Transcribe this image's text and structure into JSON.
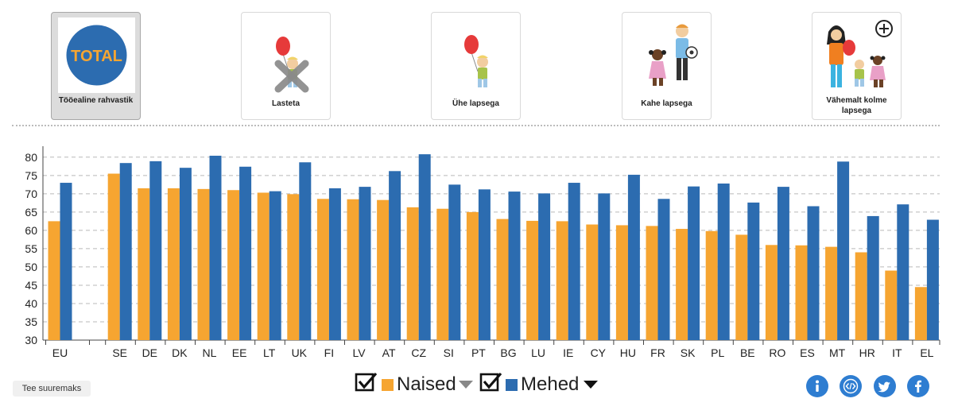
{
  "tabs": [
    {
      "id": "total",
      "label": "Tööealine rahvastik",
      "active": true,
      "icon": "total-badge-icon",
      "badge_text": "TOTAL"
    },
    {
      "id": "none",
      "label": "Lasteta",
      "active": false,
      "icon": "no-children-icon"
    },
    {
      "id": "one",
      "label": "Ühe lapsega",
      "active": false,
      "icon": "one-child-icon"
    },
    {
      "id": "two",
      "label": "Kahe lapsega",
      "active": false,
      "icon": "two-children-icon"
    },
    {
      "id": "three",
      "label": "Vähemalt kolme lapsega",
      "active": false,
      "icon": "three-plus-children-icon"
    }
  ],
  "chart_data": {
    "type": "bar",
    "categories": [
      "EU",
      "SE",
      "DE",
      "DK",
      "NL",
      "EE",
      "LT",
      "UK",
      "FI",
      "LV",
      "AT",
      "CZ",
      "SI",
      "PT",
      "BG",
      "LU",
      "IE",
      "CY",
      "HU",
      "FR",
      "SK",
      "PL",
      "BE",
      "RO",
      "ES",
      "MT",
      "HR",
      "IT",
      "EL"
    ],
    "series": [
      {
        "name": "Naised",
        "color": "#f6a531",
        "values": [
          62.5,
          75.5,
          71.5,
          71.5,
          71.3,
          71.0,
          70.3,
          69.9,
          68.6,
          68.5,
          68.3,
          66.3,
          65.9,
          65.0,
          63.1,
          62.6,
          62.5,
          61.6,
          61.4,
          61.2,
          60.4,
          59.8,
          58.8,
          56.0,
          55.9,
          55.5,
          54.0,
          49.0,
          44.5
        ]
      },
      {
        "name": "Mehed",
        "color": "#2c6cb0",
        "values": [
          73.0,
          78.4,
          78.9,
          77.1,
          80.4,
          77.4,
          70.7,
          78.6,
          71.5,
          71.9,
          76.2,
          80.8,
          72.5,
          71.2,
          70.6,
          70.1,
          73.0,
          70.1,
          75.2,
          68.6,
          72.0,
          72.8,
          67.6,
          71.9,
          66.6,
          78.8,
          63.9,
          67.1,
          62.9
        ]
      }
    ],
    "ylim": [
      30,
      83
    ],
    "yticks": [
      30,
      35,
      40,
      45,
      50,
      55,
      60,
      65,
      70,
      75,
      80
    ],
    "grid": true,
    "legend_position": "bottom-center"
  },
  "legend": {
    "naised_label": "Naised",
    "mehed_label": "Mehed"
  },
  "controls": {
    "enlarge_label": "Tee suuremaks"
  },
  "social": [
    {
      "name": "info-button",
      "icon": "info-icon"
    },
    {
      "name": "embed-button",
      "icon": "code-icon"
    },
    {
      "name": "twitter-button",
      "icon": "twitter-icon"
    },
    {
      "name": "facebook-button",
      "icon": "facebook-icon"
    }
  ],
  "colors": {
    "orange": "#f6a531",
    "blue": "#2c6cb0",
    "social": "#2e7dd1"
  }
}
